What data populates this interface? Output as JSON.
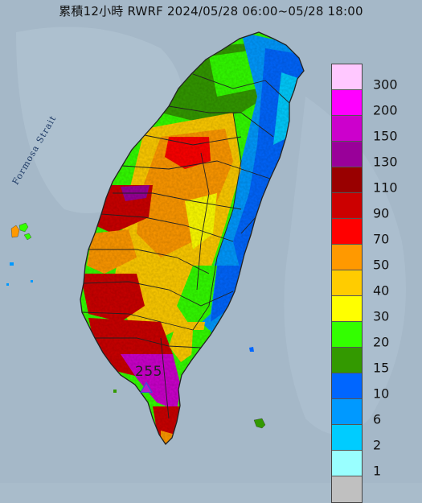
{
  "title": "累積12小時 RWRF 2024/05/28 06:00~05/28 18:00",
  "strait_label": "Formosa Strait",
  "max_value": "255",
  "legend": {
    "items": [
      {
        "label": "300",
        "color": "#ffc8ff"
      },
      {
        "label": "200",
        "color": "#ff00ff"
      },
      {
        "label": "150",
        "color": "#cc00cc"
      },
      {
        "label": "130",
        "color": "#990099"
      },
      {
        "label": "110",
        "color": "#990000"
      },
      {
        "label": "90",
        "color": "#cc0000"
      },
      {
        "label": "70",
        "color": "#ff0000"
      },
      {
        "label": "50",
        "color": "#ff9900"
      },
      {
        "label": "40",
        "color": "#ffcc00"
      },
      {
        "label": "30",
        "color": "#ffff00"
      },
      {
        "label": "20",
        "color": "#33ff00"
      },
      {
        "label": "15",
        "color": "#339900"
      },
      {
        "label": "10",
        "color": "#0066ff"
      },
      {
        "label": "6",
        "color": "#0099ff"
      },
      {
        "label": "2",
        "color": "#00ccff"
      },
      {
        "label": "1",
        "color": "#99ffff"
      },
      {
        "label": "",
        "color": "#c0c0c0"
      }
    ]
  },
  "colors": {
    "sea": "#a9bccb",
    "land_base": "#8fae7a",
    "county_border": "#222222"
  }
}
